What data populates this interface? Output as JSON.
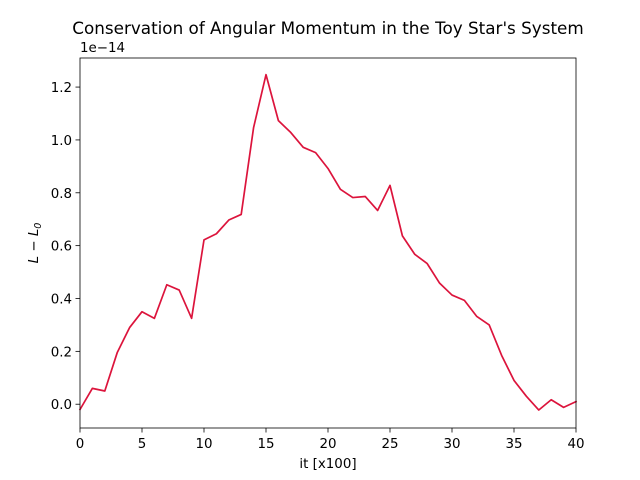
{
  "chart_data": {
    "type": "line",
    "title": "Conservation of Angular Momentum in the Toy Star's System",
    "xlabel": "it [x100]",
    "ylabel": "L − L",
    "ylabel_subscript": "0",
    "y_offset_label": "1e−14",
    "xlim": [
      0,
      40
    ],
    "ylim": [
      -0.09,
      1.31
    ],
    "x_ticks": [
      0,
      5,
      10,
      15,
      20,
      25,
      30,
      35,
      40
    ],
    "y_ticks": [
      0.0,
      0.2,
      0.4,
      0.6,
      0.8,
      1.0,
      1.2
    ],
    "x_tick_labels": [
      "0",
      "5",
      "10",
      "15",
      "20",
      "25",
      "30",
      "35",
      "40"
    ],
    "y_tick_labels": [
      "0.0",
      "0.2",
      "0.4",
      "0.6",
      "0.8",
      "1.0",
      "1.2"
    ],
    "grid": false,
    "series": [
      {
        "color": "#dc143c",
        "x": [
          0,
          1,
          2,
          3,
          4,
          5,
          6,
          7,
          8,
          9,
          10,
          11,
          12,
          13,
          14,
          15,
          16,
          17,
          18,
          19,
          20,
          21,
          22,
          23,
          24,
          25,
          26,
          27,
          28,
          29,
          30,
          31,
          32,
          33,
          34,
          35,
          36,
          37,
          38,
          39,
          40
        ],
        "y": [
          -0.02,
          0.06,
          0.05,
          0.195,
          0.29,
          0.35,
          0.325,
          0.452,
          0.432,
          0.325,
          0.622,
          0.645,
          0.697,
          0.718,
          1.047,
          1.247,
          1.073,
          1.028,
          0.972,
          0.952,
          0.892,
          0.813,
          0.782,
          0.786,
          0.733,
          0.828,
          0.637,
          0.567,
          0.532,
          0.458,
          0.413,
          0.393,
          0.332,
          0.3,
          0.185,
          0.09,
          0.03,
          -0.022,
          0.017,
          -0.012,
          0.01
        ]
      }
    ]
  }
}
